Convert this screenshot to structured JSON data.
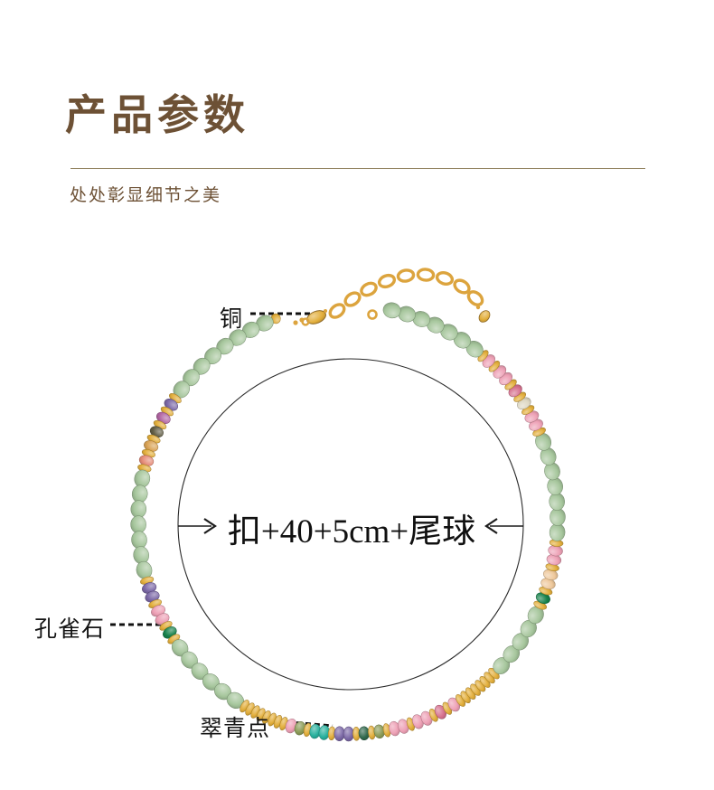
{
  "header": {
    "title": "产品参数",
    "subtitle": "处处彰显细节之美",
    "title_color": "#6d5135",
    "divider_color": "#8a7a55"
  },
  "diagram": {
    "measurement": {
      "text": "扣+40+5cm+尾球"
    },
    "labels": [
      {
        "id": "copper",
        "text": "铜"
      },
      {
        "id": "malachite",
        "text": "孔雀石"
      },
      {
        "id": "cuiqing",
        "text": "翠青点"
      }
    ]
  },
  "necklace": {
    "chain_color": "#dca43e",
    "bead_types": {
      "green": {
        "w": 20,
        "h": 17,
        "color": "#a6c69c"
      },
      "gold": {
        "w": 8,
        "h": 15,
        "color": "#e2ae3b"
      },
      "goldball": {
        "w": 11,
        "h": 11,
        "color": "#e2ae3b"
      },
      "purple": {
        "w": 12,
        "h": 16,
        "color": "#7b68a6"
      },
      "magenta": {
        "w": 12,
        "h": 16,
        "color": "#b266a3"
      },
      "darkolive": {
        "w": 12,
        "h": 15,
        "color": "#605c44"
      },
      "amber": {
        "w": 12,
        "h": 16,
        "color": "#daa355"
      },
      "salmon": {
        "w": 12,
        "h": 16,
        "color": "#e58b78"
      },
      "pink": {
        "w": 12,
        "h": 16,
        "color": "#eda0b5"
      },
      "rose": {
        "w": 12,
        "h": 16,
        "color": "#d6718e"
      },
      "cream": {
        "w": 12,
        "h": 16,
        "color": "#ddd7c2"
      },
      "peach": {
        "w": 12,
        "h": 16,
        "color": "#eec89b"
      },
      "malachite": {
        "w": 12,
        "h": 16,
        "color": "#15804a"
      },
      "teal": {
        "w": 12,
        "h": 16,
        "color": "#29b19e"
      },
      "moss": {
        "w": 12,
        "h": 15,
        "color": "#8b9b57"
      },
      "darkgreen": {
        "w": 12,
        "h": 15,
        "color": "#30684c"
      }
    },
    "sequence": [
      {
        "t": "goldball",
        "n": 1
      },
      {
        "t": "green",
        "n": 8
      },
      {
        "t": "gold",
        "n": 1
      },
      {
        "t": "purple",
        "n": 1
      },
      {
        "t": "gold",
        "n": 1
      },
      {
        "t": "magenta",
        "n": 1
      },
      {
        "t": "gold",
        "n": 1
      },
      {
        "t": "darkolive",
        "n": 1
      },
      {
        "t": "gold",
        "n": 1
      },
      {
        "t": "amber",
        "n": 1
      },
      {
        "t": "gold",
        "n": 1
      },
      {
        "t": "salmon",
        "n": 1
      },
      {
        "t": "gold",
        "n": 1
      },
      {
        "t": "green",
        "n": 7
      },
      {
        "t": "gold",
        "n": 1
      },
      {
        "t": "purple",
        "n": 2
      },
      {
        "t": "gold",
        "n": 1
      },
      {
        "t": "pink",
        "n": 2
      },
      {
        "t": "gold",
        "n": 1
      },
      {
        "t": "malachite",
        "n": 1
      },
      {
        "t": "gold",
        "n": 1
      },
      {
        "t": "green",
        "n": 6
      },
      {
        "t": "gold",
        "n": 8
      },
      {
        "t": "pink",
        "n": 1
      },
      {
        "t": "moss",
        "n": 1
      },
      {
        "t": "gold",
        "n": 1
      },
      {
        "t": "teal",
        "n": 2
      },
      {
        "t": "gold",
        "n": 1
      },
      {
        "t": "purple",
        "n": 2
      },
      {
        "t": "gold",
        "n": 1
      },
      {
        "t": "darkgreen",
        "n": 1
      },
      {
        "t": "gold",
        "n": 1
      },
      {
        "t": "moss",
        "n": 1
      },
      {
        "t": "gold",
        "n": 1
      },
      {
        "t": "pink",
        "n": 2
      },
      {
        "t": "gold",
        "n": 1
      },
      {
        "t": "pink",
        "n": 2
      },
      {
        "t": "gold",
        "n": 1
      },
      {
        "t": "rose",
        "n": 1
      },
      {
        "t": "gold",
        "n": 1
      },
      {
        "t": "pink",
        "n": 1
      },
      {
        "t": "gold",
        "n": 8
      },
      {
        "t": "green",
        "n": 5
      },
      {
        "t": "gold",
        "n": 1
      },
      {
        "t": "malachite",
        "n": 1
      },
      {
        "t": "gold",
        "n": 1
      },
      {
        "t": "peach",
        "n": 2
      },
      {
        "t": "gold",
        "n": 1
      },
      {
        "t": "pink",
        "n": 2
      },
      {
        "t": "gold",
        "n": 1
      },
      {
        "t": "green",
        "n": 7
      },
      {
        "t": "gold",
        "n": 1
      },
      {
        "t": "pink",
        "n": 2
      },
      {
        "t": "gold",
        "n": 1
      },
      {
        "t": "cream",
        "n": 1
      },
      {
        "t": "gold",
        "n": 1
      },
      {
        "t": "rose",
        "n": 1
      },
      {
        "t": "gold",
        "n": 1
      },
      {
        "t": "pink",
        "n": 2
      },
      {
        "t": "gold",
        "n": 1
      },
      {
        "t": "pink",
        "n": 1
      },
      {
        "t": "gold",
        "n": 1
      },
      {
        "t": "green",
        "n": 7
      }
    ]
  }
}
